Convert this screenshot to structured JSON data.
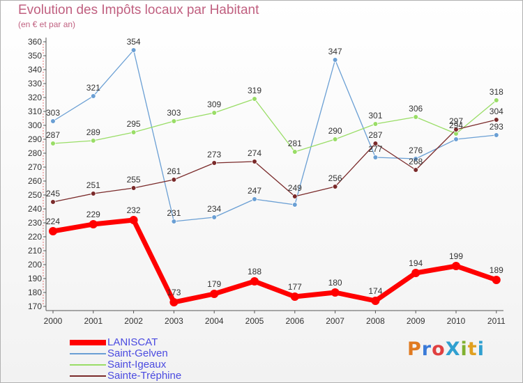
{
  "header": {
    "title": "Evolution des Impôts locaux par Habitant",
    "subtitle": "(en € et par an)"
  },
  "logo": {
    "text": "ProXiti",
    "colors": [
      "#e07a20",
      "#3a7ad8",
      "#e04040",
      "#30a0d0",
      "#80b030",
      "#e0a020",
      "#30a0d0"
    ]
  },
  "chart_data": {
    "type": "line",
    "title": "Evolution des Impôts locaux par Habitant",
    "subtitle": "(en € et par an)",
    "xlabel": "",
    "ylabel": "",
    "categories": [
      "2000",
      "2001",
      "2002",
      "2003",
      "2004",
      "2005",
      "2006",
      "2007",
      "2008",
      "2009",
      "2010",
      "2011"
    ],
    "ylim": [
      170,
      360
    ],
    "yticks": [
      170,
      180,
      190,
      200,
      210,
      220,
      230,
      240,
      250,
      260,
      270,
      280,
      290,
      300,
      310,
      320,
      330,
      340,
      350,
      360
    ],
    "grid": false,
    "legend_position": "bottom-left",
    "series": [
      {
        "name": "LANISCAT",
        "color": "#ff0000",
        "values": [
          224,
          229,
          232,
          173,
          179,
          188,
          177,
          180,
          174,
          194,
          199,
          189
        ]
      },
      {
        "name": "Saint-Gelven",
        "color": "#6a9fd4",
        "values": [
          303,
          321,
          354,
          231,
          234,
          247,
          243,
          347,
          277,
          276,
          290,
          293
        ]
      },
      {
        "name": "Saint-Igeaux",
        "color": "#99dd66",
        "values": [
          287,
          289,
          295,
          303,
          309,
          319,
          281,
          290,
          301,
          306,
          294,
          318
        ]
      },
      {
        "name": "Sainte-Tréphine",
        "color": "#7a2a2a",
        "values": [
          245,
          251,
          255,
          261,
          273,
          274,
          249,
          256,
          287,
          268,
          297,
          304
        ]
      }
    ],
    "data_labels": [
      {
        "series": "LANISCAT",
        "values": [
          "224",
          "229",
          "232",
          "173",
          "179",
          "188",
          "177",
          "180",
          "174",
          "194",
          "199",
          "189"
        ]
      },
      {
        "series": "Saint-Gelven",
        "values": [
          "303",
          "321",
          "354",
          "231",
          "234",
          "247",
          "",
          "347",
          "277",
          "276",
          "",
          "293"
        ]
      },
      {
        "series": "Saint-Igeaux",
        "values": [
          "287",
          "289",
          "295",
          "303",
          "309",
          "319",
          "281",
          "290",
          "301",
          "306",
          "294",
          "318"
        ]
      },
      {
        "series": "Sainte-Tréphine",
        "values": [
          "245",
          "251",
          "255",
          "261",
          "273",
          "274",
          "249",
          "256",
          "287",
          "268",
          "297",
          "304"
        ]
      }
    ]
  }
}
